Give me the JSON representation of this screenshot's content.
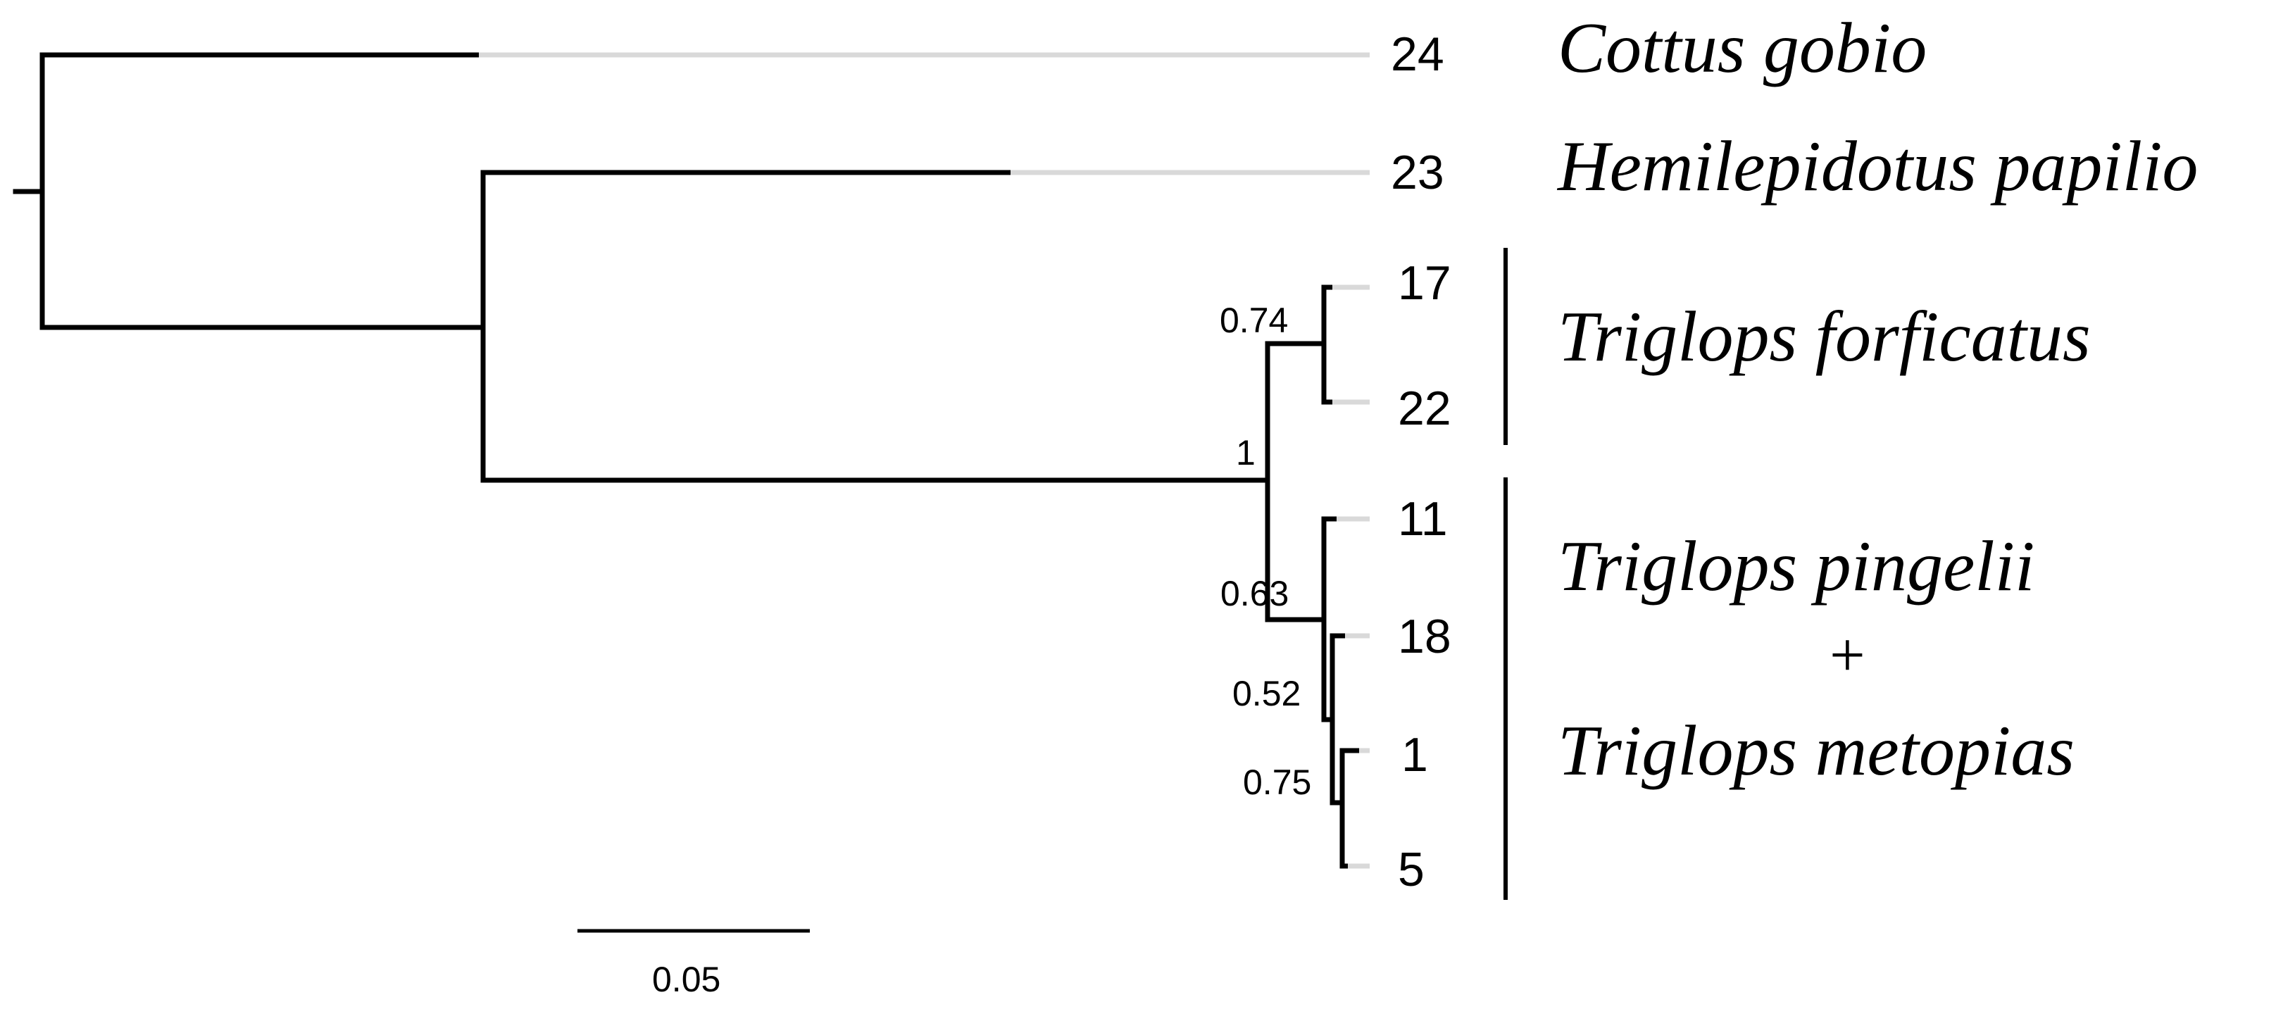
{
  "tree": {
    "tips": [
      {
        "id": "24",
        "label": "24"
      },
      {
        "id": "23",
        "label": "23"
      },
      {
        "id": "17",
        "label": "17"
      },
      {
        "id": "22",
        "label": "22"
      },
      {
        "id": "11",
        "label": "11"
      },
      {
        "id": "18",
        "label": "18"
      },
      {
        "id": "1",
        "label": "1"
      },
      {
        "id": "5",
        "label": "5"
      }
    ],
    "support_values": [
      {
        "node": "forficatus-clade",
        "value": "0.74"
      },
      {
        "node": "triglops-clade",
        "value": "1"
      },
      {
        "node": "pingelii-clade",
        "value": "0.63"
      },
      {
        "node": "clade-18-1-5",
        "value": "0.52"
      },
      {
        "node": "clade-1-5",
        "value": "0.75"
      }
    ],
    "species": [
      {
        "name": "Cottus gobio"
      },
      {
        "name": "Hemilepidotus papilio"
      },
      {
        "name": "Triglops forficatus"
      },
      {
        "name": "Triglops pingelii"
      },
      {
        "name": "+"
      },
      {
        "name": "Triglops metopias"
      }
    ],
    "scale": {
      "label": "0.05",
      "value": 0.05
    },
    "colors": {
      "branch": "#000000",
      "tip_extension": "#d9d9d9"
    }
  }
}
